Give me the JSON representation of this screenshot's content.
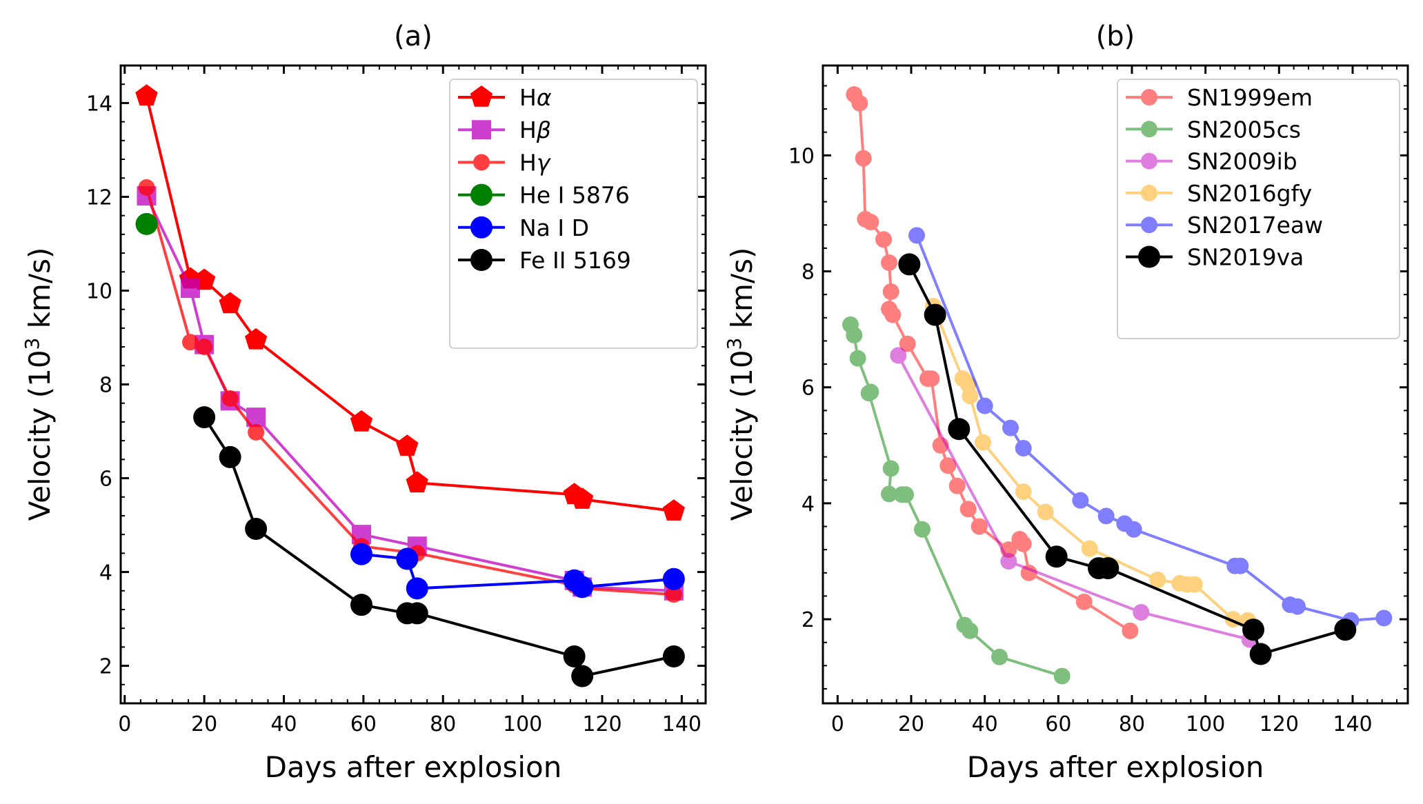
{
  "chart_data": [
    {
      "type": "line",
      "title": "(a)",
      "xlabel": "Days after explosion",
      "ylabel": "Velocity (10",
      "ylabel_sup": "3",
      "ylabel_end": " km/s)",
      "xlim": [
        -1,
        146
      ],
      "ylim": [
        1.2,
        14.8
      ],
      "xticks": [
        0,
        20,
        40,
        60,
        80,
        100,
        120,
        140
      ],
      "yticks": [
        2,
        4,
        6,
        8,
        10,
        12,
        14
      ],
      "legend_position": "top-right",
      "series": [
        {
          "name": "Hα",
          "label_main": "H",
          "label_greek": "α",
          "color": "#ff0000",
          "marker": "pentagon",
          "opacity": 1,
          "x": [
            5.5,
            16.5,
            20,
            26.5,
            33,
            59.5,
            71,
            73.5,
            113,
            115,
            138
          ],
          "y": [
            14.15,
            10.25,
            10.22,
            9.72,
            8.95,
            7.2,
            6.68,
            5.9,
            5.65,
            5.55,
            5.3
          ]
        },
        {
          "name": "Hβ",
          "label_main": "H",
          "label_greek": "β",
          "color": "#bf00bf",
          "marker": "square",
          "opacity": 0.75,
          "x": [
            5.5,
            16.5,
            20,
            26.5,
            33,
            59.5,
            73.5,
            113,
            115,
            138
          ],
          "y": [
            12.02,
            10.05,
            8.85,
            7.65,
            7.3,
            4.8,
            4.55,
            3.82,
            3.68,
            3.6
          ]
        },
        {
          "name": "Hγ",
          "label_main": "H",
          "label_greek": "γ",
          "color": "#ff0000",
          "marker": "circle",
          "opacity": 0.75,
          "x": [
            5.5,
            16.5,
            20,
            26.5,
            33,
            59.5,
            73.5,
            113,
            115,
            138
          ],
          "y": [
            12.2,
            8.9,
            8.8,
            7.7,
            6.98,
            4.55,
            4.4,
            3.72,
            3.65,
            3.52
          ]
        },
        {
          "name": "He I 5876",
          "label_main": "He I 5876",
          "color": "#008000",
          "marker": "circle_big",
          "opacity": 1,
          "x": [
            5.5
          ],
          "y": [
            11.42
          ]
        },
        {
          "name": "Na I D",
          "label_main": "Na I D",
          "color": "#0000ff",
          "marker": "circle_big",
          "opacity": 1,
          "x": [
            59.5,
            71,
            73.5,
            113,
            115,
            138
          ],
          "y": [
            4.38,
            4.28,
            3.65,
            3.82,
            3.68,
            3.85
          ]
        },
        {
          "name": "Fe II 5169",
          "label_main": "Fe II 5169",
          "color": "#000000",
          "marker": "circle_big",
          "opacity": 1,
          "x": [
            20,
            26.5,
            33,
            59.5,
            71,
            73.5,
            113,
            115,
            138
          ],
          "y": [
            7.3,
            6.45,
            4.92,
            3.3,
            3.12,
            3.12,
            2.2,
            1.78,
            2.2
          ]
        }
      ]
    },
    {
      "type": "line",
      "title": "(b)",
      "xlabel": "Days after explosion",
      "ylabel": "Velocity (10",
      "ylabel_sup": "3",
      "ylabel_end": " km/s)",
      "xlim": [
        -4,
        155
      ],
      "ylim": [
        0.55,
        11.55
      ],
      "xticks": [
        0,
        20,
        40,
        60,
        80,
        100,
        120,
        140
      ],
      "yticks": [
        2,
        4,
        6,
        8,
        10
      ],
      "legend_position": "top-right",
      "series": [
        {
          "name": "SN1999em",
          "label_main": "SN1999em",
          "color": "#ff0000",
          "marker": "circle",
          "opacity": 0.5,
          "x": [
            4.5,
            6,
            7,
            7.5,
            9,
            12.5,
            14,
            14.5,
            14,
            15,
            19,
            24.5,
            25.5,
            28,
            30,
            32.5,
            35.5,
            38.5,
            46.5,
            49.5,
            50.5,
            52,
            67,
            79.5
          ],
          "y": [
            11.05,
            10.9,
            9.95,
            8.9,
            8.85,
            8.55,
            8.15,
            7.65,
            7.35,
            7.25,
            6.75,
            6.15,
            6.15,
            5.0,
            4.65,
            4.3,
            3.9,
            3.6,
            3.2,
            3.38,
            3.3,
            2.8,
            2.3,
            1.8
          ]
        },
        {
          "name": "SN2005cs",
          "label_main": "SN2005cs",
          "color": "#008000",
          "marker": "circle",
          "opacity": 0.5,
          "x": [
            3.5,
            4.5,
            5.5,
            9,
            8.5,
            14.5,
            14,
            17.5,
            18.5,
            23,
            34.5,
            36,
            44,
            61
          ],
          "y": [
            7.08,
            6.9,
            6.5,
            5.92,
            5.9,
            4.6,
            4.16,
            4.15,
            4.15,
            3.55,
            1.9,
            1.8,
            1.35,
            1.02
          ]
        },
        {
          "name": "SN2009ib",
          "label_main": "SN2009ib",
          "color": "#bf00bf",
          "marker": "circle",
          "opacity": 0.5,
          "x": [
            16.5,
            46.5,
            82.5,
            112
          ],
          "y": [
            6.55,
            3.0,
            2.12,
            1.65
          ]
        },
        {
          "name": "SN2016gfy",
          "label_main": "SN2016gfy",
          "color": "#ffa500",
          "marker": "circle",
          "opacity": 0.5,
          "x": [
            26,
            34,
            35.5,
            36,
            39.5,
            50.5,
            56.5,
            68.5,
            87,
            93,
            95,
            97,
            107.5,
            111.5
          ],
          "y": [
            7.4,
            6.15,
            6.05,
            5.85,
            5.05,
            4.2,
            3.85,
            3.22,
            2.68,
            2.62,
            2.6,
            2.6,
            2.0,
            1.98
          ]
        },
        {
          "name": "SN2017eaw",
          "label_main": "SN2017eaw",
          "color": "#0000ff",
          "marker": "circle",
          "opacity": 0.5,
          "x": [
            21.5,
            40,
            47,
            50.5,
            66,
            73,
            78,
            80.5,
            108,
            109.5,
            123,
            125,
            139.5,
            148.5
          ],
          "y": [
            8.62,
            5.68,
            5.3,
            4.95,
            4.05,
            3.78,
            3.65,
            3.55,
            2.92,
            2.92,
            2.25,
            2.22,
            1.98,
            2.02
          ]
        },
        {
          "name": "SN2019va",
          "label_main": "SN2019va",
          "color": "#000000",
          "marker": "circle_big",
          "opacity": 1,
          "x": [
            19.5,
            26.5,
            33,
            59.5,
            71,
            73.5,
            113,
            115,
            138
          ],
          "y": [
            8.12,
            7.25,
            5.28,
            3.08,
            2.88,
            2.88,
            1.82,
            1.4,
            1.82
          ]
        }
      ]
    }
  ]
}
